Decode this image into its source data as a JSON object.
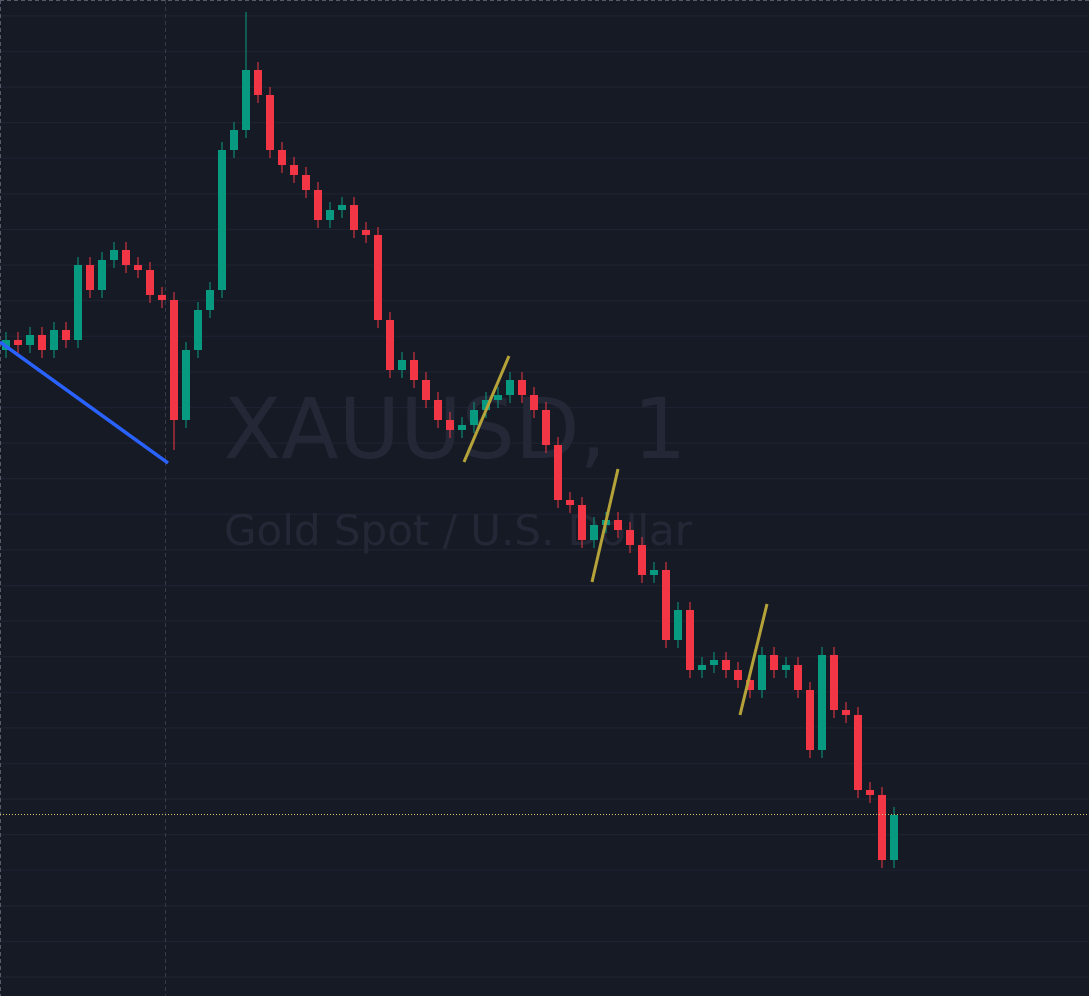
{
  "chart_data": {
    "type": "candlestick",
    "title": "XAUUSD, 1",
    "subtitle": "Gold Spot / U.S. Dollar",
    "ylim": [
      0,
      996
    ],
    "up_color": "#089981",
    "down_color": "#f23645",
    "candles": [
      [
        646,
        664,
        638,
        656
      ],
      [
        656,
        664,
        643,
        651
      ],
      [
        651,
        669,
        643,
        661
      ],
      [
        661,
        669,
        638,
        646
      ],
      [
        646,
        674,
        638,
        666
      ],
      [
        666,
        674,
        648,
        656
      ],
      [
        656,
        739,
        648,
        731
      ],
      [
        731,
        739,
        698,
        706
      ],
      [
        706,
        744,
        698,
        736
      ],
      [
        736,
        754,
        728,
        746
      ],
      [
        746,
        754,
        723,
        731
      ],
      [
        731,
        739,
        718,
        726
      ],
      [
        726,
        734,
        693,
        701
      ],
      [
        701,
        709,
        688,
        696
      ],
      [
        696,
        704,
        546,
        576
      ],
      [
        576,
        654,
        568,
        646
      ],
      [
        646,
        694,
        638,
        686
      ],
      [
        686,
        714,
        678,
        706
      ],
      [
        706,
        854,
        698,
        846
      ],
      [
        846,
        874,
        838,
        866
      ],
      [
        866,
        984,
        858,
        926
      ],
      [
        926,
        934,
        893,
        901
      ],
      [
        901,
        909,
        838,
        846
      ],
      [
        846,
        854,
        823,
        831
      ],
      [
        831,
        839,
        813,
        821
      ],
      [
        821,
        829,
        798,
        806
      ],
      [
        806,
        814,
        768,
        776
      ],
      [
        776,
        794,
        768,
        786
      ],
      [
        786,
        799,
        778,
        791
      ],
      [
        791,
        799,
        758,
        766
      ],
      [
        766,
        774,
        753,
        761
      ],
      [
        761,
        769,
        668,
        676
      ],
      [
        676,
        684,
        618,
        626
      ],
      [
        626,
        644,
        618,
        636
      ],
      [
        636,
        644,
        608,
        616
      ],
      [
        616,
        624,
        588,
        596
      ],
      [
        596,
        604,
        568,
        576
      ],
      [
        576,
        584,
        558,
        566
      ],
      [
        566,
        579,
        558,
        571
      ],
      [
        571,
        594,
        563,
        586
      ],
      [
        586,
        604,
        578,
        596
      ],
      [
        596,
        609,
        588,
        601
      ],
      [
        601,
        624,
        593,
        616
      ],
      [
        616,
        624,
        593,
        601
      ],
      [
        601,
        609,
        578,
        586
      ],
      [
        586,
        594,
        543,
        551
      ],
      [
        551,
        559,
        488,
        496
      ],
      [
        496,
        504,
        483,
        491
      ],
      [
        491,
        499,
        448,
        456
      ],
      [
        456,
        479,
        448,
        471
      ],
      [
        471,
        484,
        463,
        476
      ],
      [
        476,
        484,
        458,
        466
      ],
      [
        466,
        474,
        443,
        451
      ],
      [
        451,
        459,
        413,
        421
      ],
      [
        421,
        434,
        413,
        426
      ],
      [
        426,
        434,
        348,
        356
      ],
      [
        356,
        394,
        348,
        386
      ],
      [
        386,
        394,
        318,
        326
      ],
      [
        326,
        339,
        318,
        331
      ],
      [
        331,
        344,
        323,
        336
      ],
      [
        336,
        344,
        318,
        326
      ],
      [
        326,
        334,
        308,
        316
      ],
      [
        316,
        324,
        298,
        306
      ],
      [
        306,
        349,
        298,
        341
      ],
      [
        341,
        349,
        318,
        326
      ],
      [
        326,
        339,
        318,
        331
      ],
      [
        331,
        339,
        298,
        306
      ],
      [
        306,
        314,
        238,
        246
      ],
      [
        246,
        349,
        238,
        341
      ],
      [
        341,
        349,
        278,
        286
      ],
      [
        286,
        294,
        273,
        281
      ],
      [
        281,
        289,
        198,
        206
      ],
      [
        206,
        214,
        193,
        201
      ],
      [
        201,
        209,
        128,
        136
      ],
      [
        136,
        189,
        128,
        181
      ]
    ]
  }
}
